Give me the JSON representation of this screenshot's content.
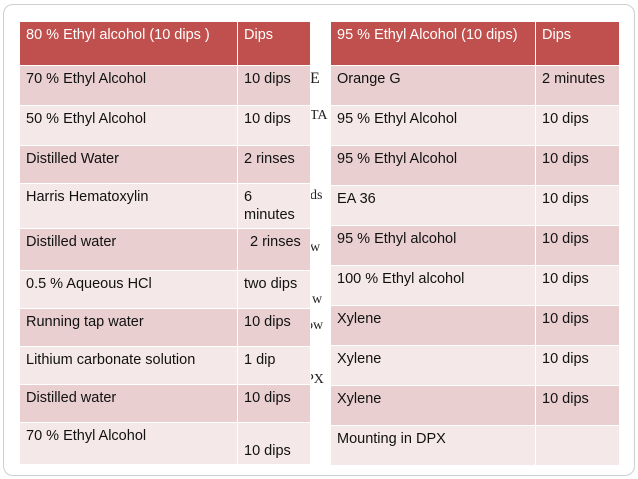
{
  "background_fragments": [
    "E",
    "TA",
    "ds",
    "w",
    "w",
    "ow",
    "PX"
  ],
  "table_left": {
    "header": [
      "80 % Ethyl alcohol (10 dips )",
      "Dips"
    ],
    "rows": [
      [
        "70 % Ethyl Alcohol",
        "10 dips"
      ],
      [
        "50 % Ethyl Alcohol",
        "10 dips"
      ],
      [
        "Distilled Water",
        "2 rinses"
      ],
      [
        "Harris Hematoxylin",
        "6 minutes"
      ],
      [
        "Distilled water",
        "2 rinses"
      ],
      [
        "0.5 % Aqueous HCl",
        "two dips"
      ],
      [
        "Running tap water",
        "10 dips"
      ],
      [
        "Lithium carbonate solution",
        "1 dip"
      ],
      [
        "Distilled water",
        "10 dips"
      ],
      [
        "70 % Ethyl Alcohol",
        "10 dips"
      ]
    ]
  },
  "table_right": {
    "header": [
      "95 % Ethyl Alcohol (10 dips)",
      "Dips"
    ],
    "rows": [
      [
        "Orange G",
        "2 minutes"
      ],
      [
        "95 % Ethyl Alcohol",
        "10 dips"
      ],
      [
        "95 % Ethyl Alcohol",
        "10 dips"
      ],
      [
        "EA 36",
        "10 dips"
      ],
      [
        "95 % Ethyl alcohol",
        "10 dips"
      ],
      [
        "100 % Ethyl alcohol",
        "10 dips"
      ],
      [
        "Xylene",
        "10 dips"
      ],
      [
        "Xylene",
        "10 dips"
      ],
      [
        "Xylene",
        "10 dips"
      ],
      [
        "Mounting in DPX",
        ""
      ]
    ]
  },
  "colors": {
    "header": "#c0504d",
    "row_odd": "#e9cfcf",
    "row_even": "#f5e8e8"
  }
}
